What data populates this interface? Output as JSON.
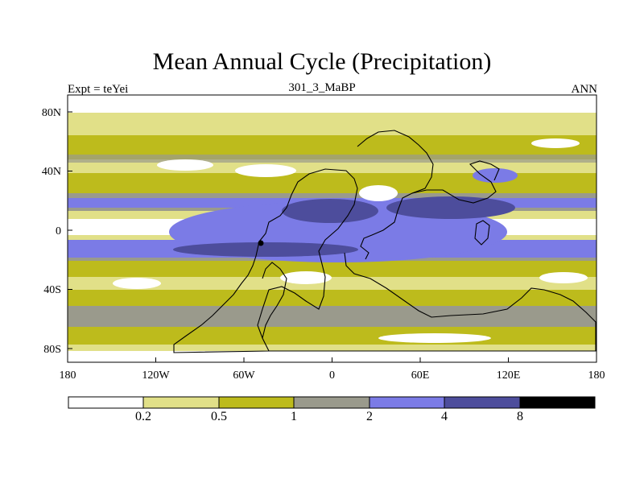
{
  "title": "Mean Annual Cycle (Precipitation)",
  "subtitle": "301_3_MaBP",
  "left_label": "Expt = teYei",
  "right_label": "ANN",
  "chart_data": {
    "type": "heatmap",
    "variable": "Precipitation",
    "projection": "cylindrical-equidistant",
    "x_range": [
      -180,
      180
    ],
    "y_range": [
      -90,
      90
    ],
    "x_ticks": [
      "180",
      "120W",
      "60W",
      "0",
      "60E",
      "120E",
      "180"
    ],
    "y_ticks": [
      "80N",
      "40N",
      "0",
      "40S",
      "80S"
    ],
    "levels": [
      "0.2",
      "0.5",
      "1",
      "2",
      "4",
      "8"
    ],
    "colors": [
      "#ffffff",
      "#e1e088",
      "#bdbb1c",
      "#9a9a8c",
      "#7b7be6",
      "#4d4d9c",
      "#000000"
    ],
    "marker": {
      "lon": -48,
      "lat": -8
    }
  }
}
